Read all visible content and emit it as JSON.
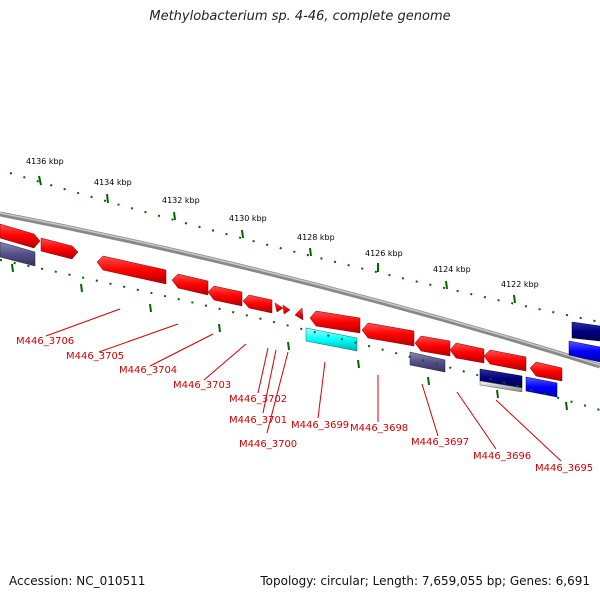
{
  "title": "Methylobacterium sp. 4-46, complete genome",
  "footer": {
    "accession": "Accession: NC_010511",
    "topology": "Topology: circular; Length: 7,659,055 bp; Genes: 6,691"
  },
  "scale_labels": [
    "4136 kbp",
    "4134 kbp",
    "4132 kbp",
    "4130 kbp",
    "4128 kbp",
    "4126 kbp",
    "4124 kbp",
    "4122 kbp"
  ],
  "gene_labels": [
    "M446_3706",
    "M446_3705",
    "M446_3704",
    "M446_3703",
    "M446_3702",
    "M446_3701",
    "M446_3700",
    "M446_3699",
    "M446_3698",
    "M446_3697",
    "M446_3696",
    "M446_3695"
  ],
  "colors": {
    "forward_gene": "#ff0000",
    "reverse_gene": "#d40000",
    "trna_cyan": "#00ffff",
    "blue_gene": "#0000ff",
    "navy_gene": "#000080",
    "purple_gene": "#55508a",
    "gray_gene": "#c0c0c0",
    "backbone": "#888888",
    "ticks": "#006400",
    "label": "#d40000"
  }
}
